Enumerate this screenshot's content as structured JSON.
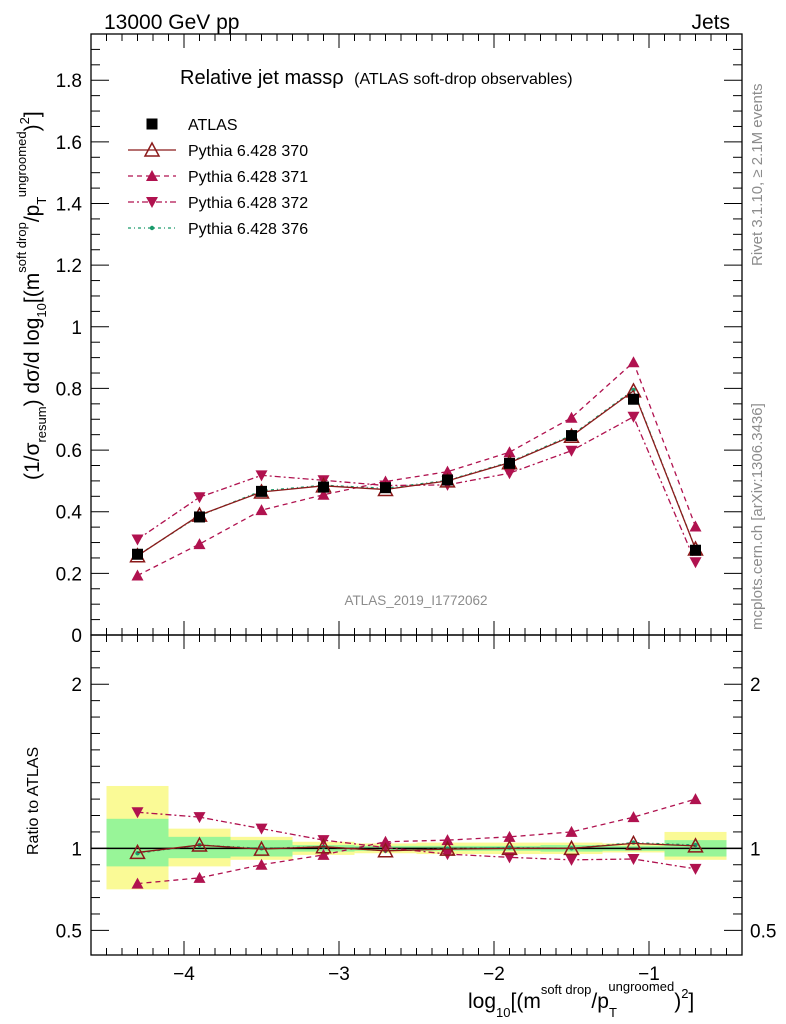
{
  "header": {
    "left": "13000 GeV pp",
    "right": "Jets"
  },
  "title": {
    "main": "Relative jet massρ",
    "sub": "(ATLAS soft-drop observables)"
  },
  "side_labels": {
    "rivet": "Rivet 3.1.10, ≥ 2.1M events",
    "mcplots": "mcplots.cern.ch [arXiv:1306.3436]"
  },
  "analysis_id": "ATLAS_2019_I1772062",
  "ylabel_top": {
    "p1": "(1/σ",
    "sub1": "resum",
    "p2": ") dσ/d log",
    "sub2": "10",
    "p3": "[(m",
    "sup3": "soft drop",
    "p4": "/p",
    "sub4": "T",
    "sup4": "ungroomed",
    "p5": ")",
    "sup5": "2",
    "p6": "]"
  },
  "ylabel_bottom": "Ratio to ATLAS",
  "xlabel": {
    "p1": "log",
    "sub1": "10",
    "p2": "[(m",
    "sup2": "soft drop",
    "p3": "/p",
    "sub3": "T",
    "sup3": "ungroomed",
    "p4": ")",
    "sup4": "2",
    "p5": "]"
  },
  "legend": [
    {
      "label": "ATLAS",
      "marker": "square",
      "color": "#000000"
    },
    {
      "label": "Pythia 6.428 370",
      "marker": "triangle-open",
      "color": "#8b1a1a"
    },
    {
      "label": "Pythia 6.428 371",
      "marker": "triangle-up",
      "color": "#b0124f"
    },
    {
      "label": "Pythia 6.428 372",
      "marker": "triangle-down",
      "color": "#b0124f"
    },
    {
      "label": "Pythia 6.428 376",
      "marker": "dot",
      "color": "#1a9a6b"
    }
  ],
  "chart_data": {
    "type": "line",
    "x": [
      -4.3,
      -3.9,
      -3.5,
      -3.1,
      -2.7,
      -2.3,
      -1.9,
      -1.5,
      -1.1,
      -0.7
    ],
    "x_bin_edges": [
      -4.5,
      -4.1,
      -3.7,
      -3.3,
      -2.9,
      -2.5,
      -2.1,
      -1.7,
      -1.3,
      -0.9,
      -0.5
    ],
    "x_ticks": [
      -4,
      -3,
      -2,
      -1
    ],
    "x_tick_labels": [
      "−4",
      "−3",
      "−2",
      "−1"
    ],
    "xlim": [
      -4.6,
      -0.4
    ],
    "main": {
      "ylim": [
        0,
        1.95
      ],
      "y_ticks": [
        0,
        0.2,
        0.4,
        0.6,
        0.8,
        1,
        1.2,
        1.4,
        1.6,
        1.8
      ],
      "y_tick_labels": [
        "0",
        "0.2",
        "0.4",
        "0.6",
        "0.8",
        "1",
        "1.2",
        "1.4",
        "1.6",
        "1.8"
      ],
      "series": [
        {
          "name": "ATLAS",
          "values": [
            0.262,
            0.383,
            0.466,
            0.48,
            0.478,
            0.503,
            0.557,
            0.647,
            0.765,
            0.275
          ]
        },
        {
          "name": "Pythia 6.428 370",
          "values": [
            0.257,
            0.389,
            0.464,
            0.484,
            0.472,
            0.5,
            0.559,
            0.645,
            0.792,
            0.279
          ]
        },
        {
          "name": "Pythia 6.428 371",
          "values": [
            0.193,
            0.295,
            0.405,
            0.455,
            0.498,
            0.53,
            0.593,
            0.705,
            0.885,
            0.352
          ]
        },
        {
          "name": "Pythia 6.428 372",
          "values": [
            0.31,
            0.447,
            0.518,
            0.502,
            0.485,
            0.487,
            0.525,
            0.598,
            0.708,
            0.236
          ]
        },
        {
          "name": "Pythia 6.428 376",
          "values": [
            0.258,
            0.387,
            0.468,
            0.486,
            0.476,
            0.502,
            0.561,
            0.648,
            0.795,
            0.28
          ]
        }
      ]
    },
    "ratio": {
      "ylim": [
        0.35,
        2.3
      ],
      "y_ticks": [
        0.5,
        1,
        2
      ],
      "y_tick_labels": [
        "0.5",
        "1",
        "2"
      ],
      "band_stat_green": [
        [
          0.89,
          1.18
        ],
        [
          0.94,
          1.07
        ],
        [
          0.95,
          1.05
        ],
        [
          0.98,
          1.02
        ],
        [
          0.985,
          1.015
        ],
        [
          0.985,
          1.015
        ],
        [
          0.985,
          1.015
        ],
        [
          0.98,
          1.02
        ],
        [
          0.985,
          1.015
        ],
        [
          0.95,
          1.05
        ]
      ],
      "band_total_yellow": [
        [
          0.75,
          1.38
        ],
        [
          0.89,
          1.12
        ],
        [
          0.93,
          1.07
        ],
        [
          0.96,
          1.04
        ],
        [
          0.97,
          1.03
        ],
        [
          0.965,
          1.035
        ],
        [
          0.965,
          1.035
        ],
        [
          0.965,
          1.035
        ],
        [
          0.975,
          1.03
        ],
        [
          0.93,
          1.1
        ]
      ],
      "series": [
        {
          "name": "Pythia 6.428 370",
          "values": [
            0.975,
            1.02,
            0.995,
            1.01,
            0.985,
            0.995,
            1.0,
            1.0,
            1.03,
            1.015
          ]
        },
        {
          "name": "Pythia 6.428 371",
          "values": [
            0.785,
            0.82,
            0.9,
            0.96,
            1.04,
            1.05,
            1.07,
            1.1,
            1.19,
            1.3
          ]
        },
        {
          "name": "Pythia 6.428 372",
          "values": [
            1.22,
            1.19,
            1.12,
            1.05,
            1.005,
            0.965,
            0.945,
            0.93,
            0.935,
            0.875
          ]
        },
        {
          "name": "Pythia 6.428 376",
          "values": [
            0.97,
            1.02,
            1.0,
            1.01,
            0.985,
            0.998,
            1.005,
            1.0,
            1.035,
            1.02
          ]
        }
      ]
    }
  },
  "colors": {
    "green_band": "#98f598",
    "yellow_band": "#fafa96",
    "gray_text": "#8c8c8c"
  }
}
